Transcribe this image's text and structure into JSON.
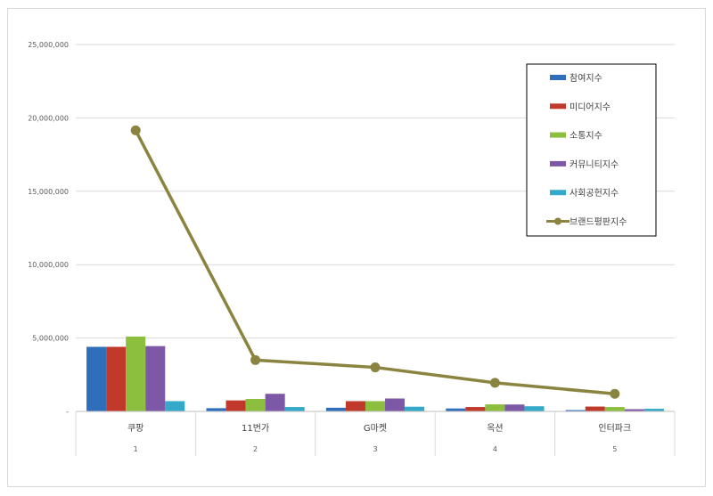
{
  "chart_data": {
    "type": "bar",
    "categories": [
      "쿠팡",
      "11번가",
      "G마켓",
      "옥션",
      "인터파크"
    ],
    "category_index": [
      "1",
      "2",
      "3",
      "4",
      "5"
    ],
    "ylim": [
      0,
      25000000
    ],
    "yticks": [
      0,
      5000000,
      10000000,
      15000000,
      20000000,
      25000000
    ],
    "ytick_labels": [
      "-",
      "5,000,000",
      "10,000,000",
      "15,000,000",
      "20,000,000",
      "25,000,000"
    ],
    "grid": true,
    "legend_position": "top-right",
    "series": [
      {
        "name": "참여지수",
        "type": "bar",
        "color": "#2f6eba",
        "values": [
          4400000,
          220000,
          250000,
          200000,
          90000
        ]
      },
      {
        "name": "미디어지수",
        "type": "bar",
        "color": "#c0392b",
        "values": [
          4400000,
          750000,
          700000,
          300000,
          330000
        ]
      },
      {
        "name": "소통지수",
        "type": "bar",
        "color": "#8dbf3e",
        "values": [
          5100000,
          850000,
          700000,
          480000,
          300000
        ]
      },
      {
        "name": "커뮤니티지수",
        "type": "bar",
        "color": "#7d58a6",
        "values": [
          4450000,
          1200000,
          880000,
          470000,
          150000
        ]
      },
      {
        "name": "사회공헌지수",
        "type": "bar",
        "color": "#35a9c9",
        "values": [
          700000,
          300000,
          320000,
          350000,
          180000
        ]
      },
      {
        "name": "브랜드평판지수",
        "type": "line",
        "color": "#8a8440",
        "values": [
          19150000,
          3500000,
          3000000,
          1950000,
          1200000
        ]
      }
    ]
  }
}
